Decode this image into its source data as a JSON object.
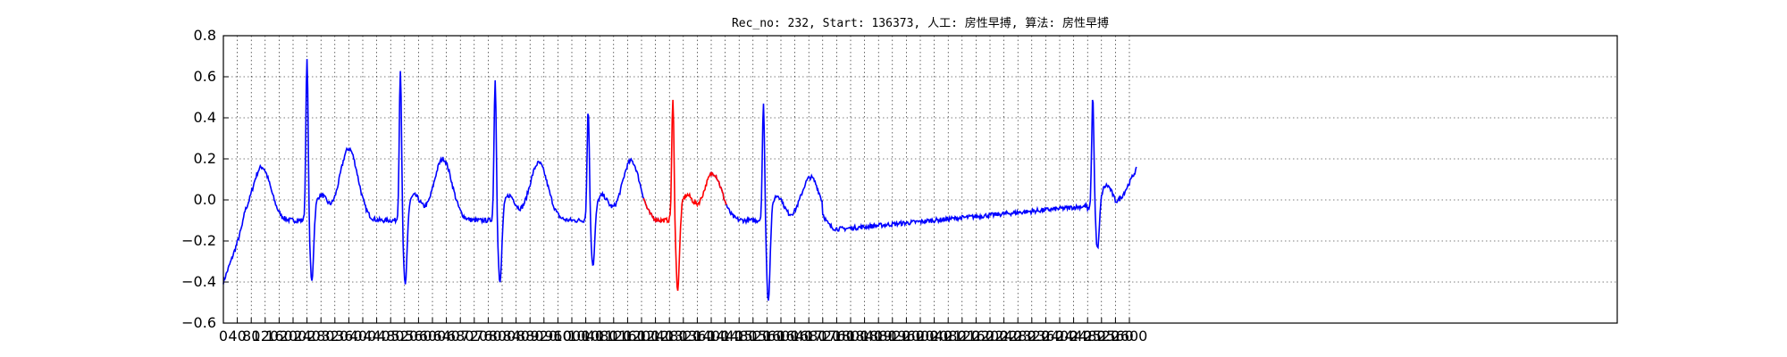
{
  "chart_data": {
    "type": "line",
    "title": "Rec_no: 232, Start: 136373, 人工: 房性早搏, 算法: 房性早搏",
    "xlabel": "",
    "ylabel": "",
    "xlim": [
      0,
      4000
    ],
    "ylim": [
      -0.6,
      0.8
    ],
    "grid": true,
    "y_ticks": [
      0.8,
      0.6,
      0.4,
      0.2,
      0.0,
      -0.2,
      -0.4,
      -0.6
    ],
    "y_tick_labels": [
      "0.8",
      "0.6",
      "0.4",
      "0.2",
      "0.0",
      "−0.2",
      "−0.4",
      "−0.6"
    ],
    "x_tick_labels": [
      "0",
      "40",
      "80",
      "120",
      "160",
      "200",
      "240",
      "280",
      "320",
      "360",
      "400",
      "440",
      "480",
      "520",
      "560",
      "600",
      "640",
      "680",
      "720",
      "760",
      "800",
      "840",
      "880",
      "920",
      "960",
      "1000",
      "1040",
      "1080",
      "1120",
      "1160",
      "1200",
      "1240",
      "1280",
      "1320",
      "1360",
      "1400",
      "1440",
      "1480",
      "1520",
      "1560",
      "1600",
      "1640",
      "1680",
      "1720",
      "1760",
      "1800",
      "1840",
      "1880",
      "1920",
      "1960",
      "2000",
      "2040",
      "2080",
      "2120",
      "2160",
      "2200",
      "2240",
      "2280",
      "2320",
      "2360",
      "2400",
      "2440",
      "2480",
      "2520",
      "2560",
      "2600"
    ],
    "x_tick_step": 40,
    "series": [
      {
        "color": "#0000ff",
        "segments": [
          [
            0,
            1256
          ],
          [
            1395,
            2620
          ]
        ]
      },
      {
        "color": "#ff0000",
        "segments": [
          [
            1206,
            1445
          ]
        ]
      }
    ],
    "beats": [
      {
        "x": 0,
        "baseline": -0.4,
        "note": "start"
      },
      {
        "x": 240,
        "peak": 0.68,
        "trough": -0.44
      },
      {
        "x": 508,
        "peak": 0.63,
        "trough": -0.46
      },
      {
        "x": 780,
        "peak": 0.58,
        "trough": -0.45
      },
      {
        "x": 1047,
        "peak": 0.44,
        "trough": -0.36
      },
      {
        "x": 1290,
        "peak": 0.48,
        "trough": -0.48
      },
      {
        "x": 1550,
        "peak": 0.46,
        "trough": -0.53
      },
      {
        "x": 2495,
        "peak": 0.5,
        "trough": -0.28
      }
    ],
    "t_waves": [
      {
        "x": 110,
        "peak": 0.16
      },
      {
        "x": 360,
        "peak": 0.25
      },
      {
        "x": 630,
        "peak": 0.2
      },
      {
        "x": 905,
        "peak": 0.18
      },
      {
        "x": 1170,
        "peak": 0.19
      },
      {
        "x": 1405,
        "peak": 0.13
      },
      {
        "x": 1685,
        "peak": 0.11
      }
    ],
    "end_value": 0.15
  }
}
